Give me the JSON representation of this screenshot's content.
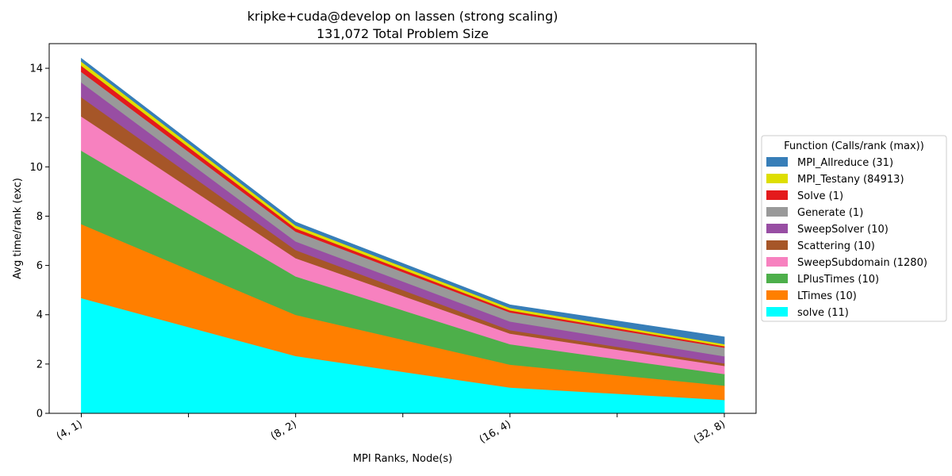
{
  "chart_data": {
    "type": "area",
    "stacked": true,
    "title_line1": "kripke+cuda@develop on lassen (strong scaling)",
    "title_line2": "131,072 Total Problem Size",
    "xlabel": "MPI Ranks, Node(s)",
    "ylabel": "Avg time/rank (exc)",
    "categories": [
      "(4, 1)",
      "(8, 2)",
      "(16, 4)",
      "(32, 8)"
    ],
    "ylim": [
      0,
      15
    ],
    "yticks": [
      0,
      2,
      4,
      6,
      8,
      10,
      12,
      14
    ],
    "grid": false,
    "legend": {
      "title": "Function (Calls/rank (max))",
      "placement": "outside-right"
    },
    "series": [
      {
        "name": "solve (11)",
        "color": "#00ffff",
        "values": [
          4.68,
          2.33,
          1.05,
          0.55
        ]
      },
      {
        "name": "LTimes (10)",
        "color": "#ff7f00",
        "values": [
          3.0,
          1.67,
          0.93,
          0.58
        ]
      },
      {
        "name": "LPlusTimes (10)",
        "color": "#4daf4a",
        "values": [
          2.98,
          1.56,
          0.83,
          0.47
        ]
      },
      {
        "name": "SweepSubdomain (1280)",
        "color": "#f781bf",
        "values": [
          1.39,
          0.74,
          0.43,
          0.33
        ]
      },
      {
        "name": "Scattering (10)",
        "color": "#a65628",
        "values": [
          0.78,
          0.33,
          0.14,
          0.1
        ]
      },
      {
        "name": "SweepSolver (10)",
        "color": "#984ea3",
        "values": [
          0.6,
          0.35,
          0.35,
          0.29
        ]
      },
      {
        "name": "Generate (1)",
        "color": "#999999",
        "values": [
          0.43,
          0.4,
          0.37,
          0.35
        ]
      },
      {
        "name": "Solve (1)",
        "color": "#e41a1c",
        "values": [
          0.25,
          0.13,
          0.08,
          0.06
        ]
      },
      {
        "name": "MPI_Testany (84913)",
        "color": "#dede00",
        "values": [
          0.17,
          0.12,
          0.1,
          0.08
        ]
      },
      {
        "name": "MPI_Allreduce (31)",
        "color": "#377eb8",
        "values": [
          0.12,
          0.13,
          0.12,
          0.29
        ]
      }
    ]
  }
}
